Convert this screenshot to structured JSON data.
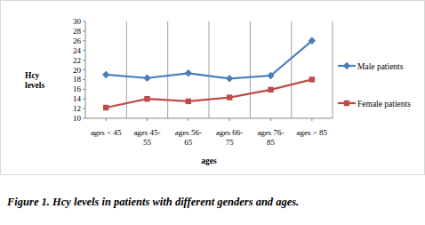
{
  "chart_data": {
    "type": "line",
    "caption": "Figure 1. Hcy levels in patients with different genders and ages.",
    "x_label": "ages",
    "y_label": "Hcy levels",
    "categories": [
      "ages < 45",
      "ages 45-55",
      "ages 56-65",
      "ages 66-75",
      "ages 76-85",
      "ages > 85"
    ],
    "series": [
      {
        "name": "Male patients",
        "color": "#4a7ebb",
        "marker": "diamond",
        "values": [
          19,
          18.3,
          19.3,
          18.2,
          18.8,
          26
        ]
      },
      {
        "name": "Female patients",
        "color": "#be4b48",
        "marker": "square",
        "values": [
          12.2,
          14,
          13.5,
          14.3,
          15.9,
          18
        ]
      }
    ],
    "ylim": [
      10,
      30
    ],
    "yticks": [
      10,
      12,
      14,
      16,
      18,
      20,
      22,
      24,
      26,
      28,
      30
    ],
    "grid": true,
    "legend": "right"
  }
}
